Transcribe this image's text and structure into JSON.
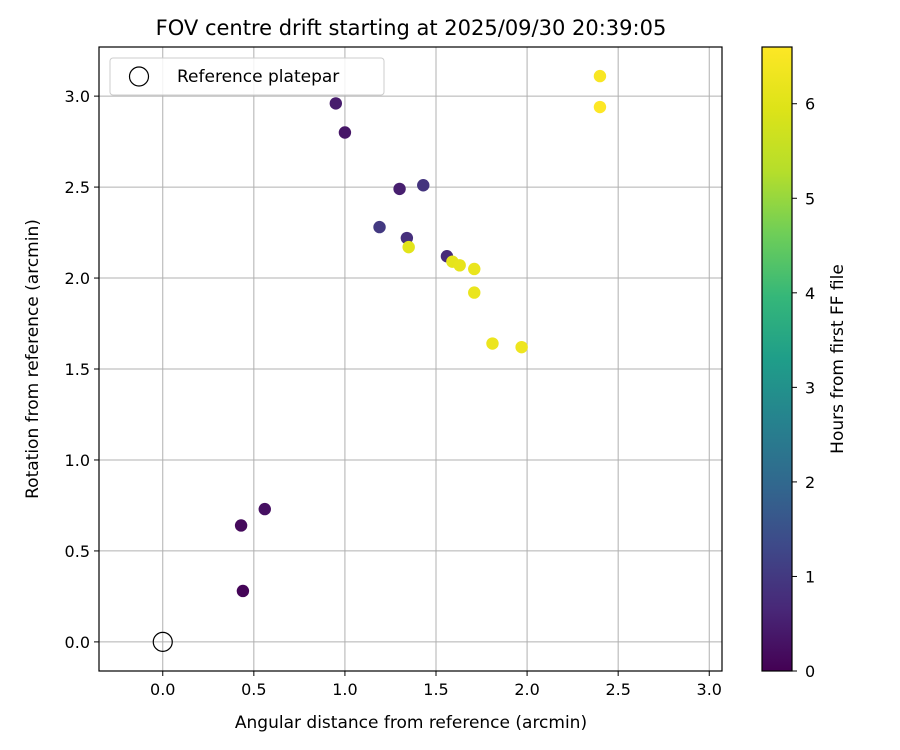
{
  "chart_data": {
    "type": "scatter",
    "title": "FOV centre drift starting at 2025/09/30 20:39:05",
    "xlabel": "Angular distance from reference (arcmin)",
    "ylabel": "Rotation from reference (arcmin)",
    "xlim": [
      -0.35,
      3.07
    ],
    "ylim": [
      -0.16,
      3.27
    ],
    "x_ticks": [
      "0.0",
      "0.5",
      "1.0",
      "1.5",
      "2.0",
      "2.5",
      "3.0"
    ],
    "y_ticks": [
      "0.0",
      "0.5",
      "1.0",
      "1.5",
      "2.0",
      "2.5",
      "3.0"
    ],
    "grid": true,
    "legend": {
      "label": "Reference platepar",
      "location": "top-left"
    },
    "reference_point": {
      "x": 0.0,
      "y": 0.0
    },
    "colorbar": {
      "label": "Hours from first FF file",
      "min": 0,
      "max": 6.6,
      "ticks": [
        "0",
        "1",
        "2",
        "3",
        "4",
        "5",
        "6"
      ],
      "colormap": "viridis"
    },
    "points": [
      {
        "x": 0.44,
        "y": 0.28,
        "hours": 0.05
      },
      {
        "x": 0.43,
        "y": 0.64,
        "hours": 0.15
      },
      {
        "x": 0.56,
        "y": 0.73,
        "hours": 0.25
      },
      {
        "x": 0.95,
        "y": 2.96,
        "hours": 0.45
      },
      {
        "x": 1.0,
        "y": 2.8,
        "hours": 0.35
      },
      {
        "x": 1.3,
        "y": 2.49,
        "hours": 0.5
      },
      {
        "x": 1.43,
        "y": 2.51,
        "hours": 0.9
      },
      {
        "x": 1.19,
        "y": 2.28,
        "hours": 1.0
      },
      {
        "x": 1.34,
        "y": 2.22,
        "hours": 0.8
      },
      {
        "x": 1.56,
        "y": 2.12,
        "hours": 0.7
      },
      {
        "x": 1.35,
        "y": 2.17,
        "hours": 6.05
      },
      {
        "x": 1.59,
        "y": 2.09,
        "hours": 6.1
      },
      {
        "x": 1.63,
        "y": 2.07,
        "hours": 6.15
      },
      {
        "x": 1.71,
        "y": 2.05,
        "hours": 6.2
      },
      {
        "x": 1.71,
        "y": 1.92,
        "hours": 6.2
      },
      {
        "x": 1.81,
        "y": 1.64,
        "hours": 6.25
      },
      {
        "x": 1.97,
        "y": 1.62,
        "hours": 6.3
      },
      {
        "x": 2.4,
        "y": 3.11,
        "hours": 6.5
      },
      {
        "x": 2.4,
        "y": 2.94,
        "hours": 6.6
      }
    ]
  }
}
